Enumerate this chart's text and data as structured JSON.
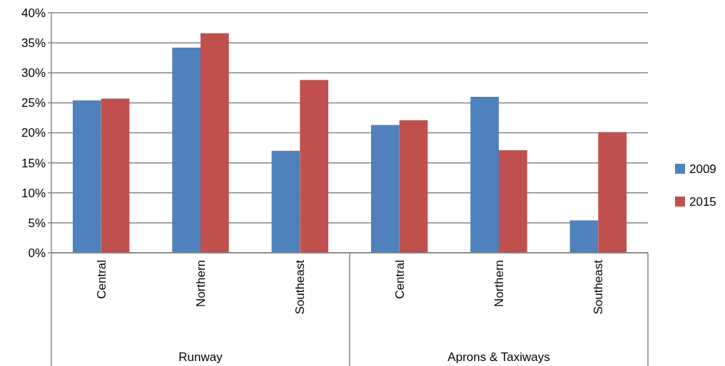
{
  "chart_data": {
    "type": "bar",
    "categories": [
      "Central",
      "Northern",
      "Southeast",
      "Central",
      "Northern",
      "Southeast"
    ],
    "series": [
      {
        "name": "2009",
        "color": "#4f81bd",
        "values": [
          25.4,
          34.2,
          17.0,
          21.3,
          26.0,
          5.4
        ]
      },
      {
        "name": "2015",
        "color": "#c0504d",
        "values": [
          25.7,
          36.6,
          28.8,
          22.1,
          17.1,
          20.1
        ]
      }
    ],
    "ylim": [
      0,
      40
    ],
    "yticks": [
      {
        "value": 0,
        "label": "0%"
      },
      {
        "value": 5,
        "label": "5%"
      },
      {
        "value": 10,
        "label": "10%"
      },
      {
        "value": 15,
        "label": "15%"
      },
      {
        "value": 20,
        "label": "20%"
      },
      {
        "value": 25,
        "label": "25%"
      },
      {
        "value": 30,
        "label": "30%"
      },
      {
        "value": 35,
        "label": "35%"
      },
      {
        "value": 40,
        "label": "40%"
      }
    ],
    "annotations": [
      "Runway",
      "Aprons & Taxiways"
    ],
    "grid": "y",
    "legend": "right"
  }
}
